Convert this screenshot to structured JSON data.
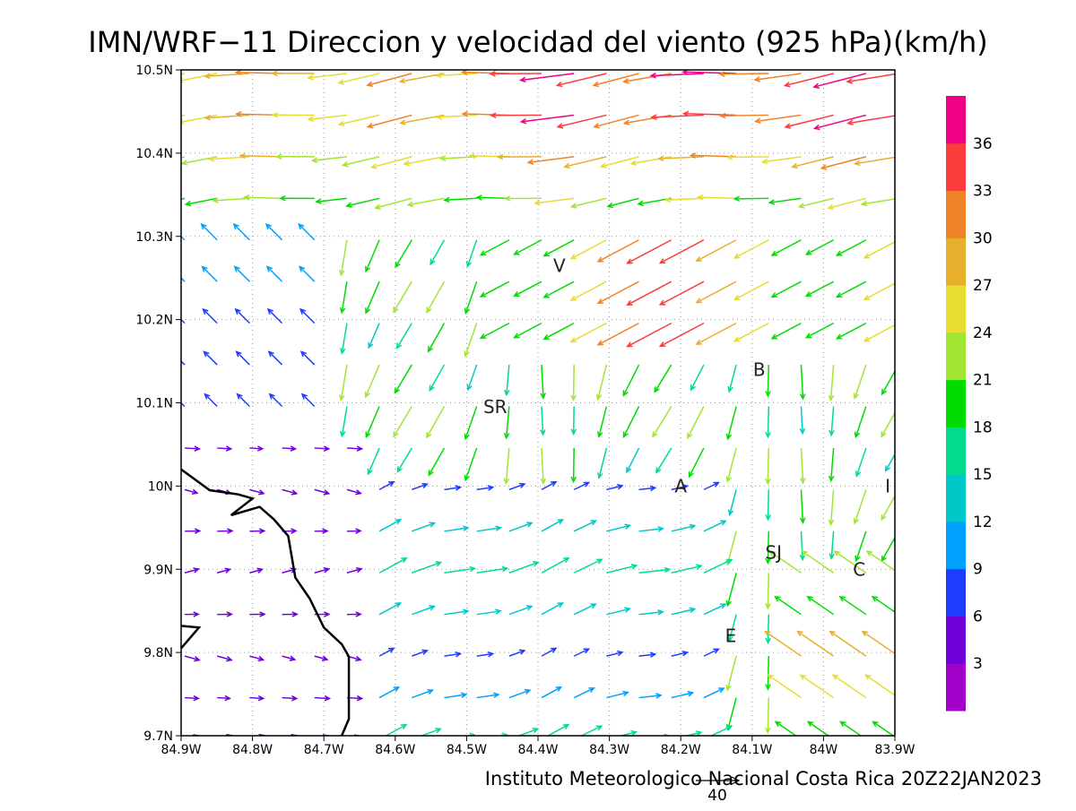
{
  "title": "IMN/WRF−11 Direccion y velocidad del viento (925 hPa)(km/h)",
  "footer": "Instituto Meteorologico Nacional Costa Rica 20Z22JAN2023",
  "reference_vector": {
    "label": "40",
    "speed": 40
  },
  "map": {
    "lon_range": [
      -84.9,
      -83.9
    ],
    "lat_range": [
      9.7,
      10.5
    ],
    "grid": "dotted",
    "x_ticks": [
      {
        "v": -84.9,
        "label": "84.9W"
      },
      {
        "v": -84.8,
        "label": "84.8W"
      },
      {
        "v": -84.7,
        "label": "84.7W"
      },
      {
        "v": -84.6,
        "label": "84.6W"
      },
      {
        "v": -84.5,
        "label": "84.5W"
      },
      {
        "v": -84.4,
        "label": "84.4W"
      },
      {
        "v": -84.3,
        "label": "84.3W"
      },
      {
        "v": -84.2,
        "label": "84.2W"
      },
      {
        "v": -84.1,
        "label": "84.1W"
      },
      {
        "v": -84.0,
        "label": "84W"
      },
      {
        "v": -83.9,
        "label": "83.9W"
      }
    ],
    "y_ticks": [
      {
        "v": 9.7,
        "label": "9.7N"
      },
      {
        "v": 9.8,
        "label": "9.8N"
      },
      {
        "v": 9.9,
        "label": "9.9N"
      },
      {
        "v": 10.0,
        "label": "10N"
      },
      {
        "v": 10.1,
        "label": "10.1N"
      },
      {
        "v": 10.2,
        "label": "10.2N"
      },
      {
        "v": 10.3,
        "label": "10.3N"
      },
      {
        "v": 10.4,
        "label": "10.4N"
      },
      {
        "v": 10.5,
        "label": "10.5N"
      }
    ],
    "place_labels": [
      {
        "text": "V",
        "lon": -84.37,
        "lat": 10.265
      },
      {
        "text": "B",
        "lon": -84.09,
        "lat": 10.14
      },
      {
        "text": "SR",
        "lon": -84.46,
        "lat": 10.095
      },
      {
        "text": "A",
        "lon": -84.2,
        "lat": 10.0
      },
      {
        "text": "I",
        "lon": -83.91,
        "lat": 10.0
      },
      {
        "text": "SJ",
        "lon": -84.07,
        "lat": 9.92
      },
      {
        "text": "C",
        "lon": -83.95,
        "lat": 9.9
      },
      {
        "text": "E",
        "lon": -84.13,
        "lat": 9.82
      }
    ],
    "coastline": [
      [
        -84.9,
        10.02
      ],
      [
        -84.86,
        9.995
      ],
      [
        -84.82,
        9.99
      ],
      [
        -84.8,
        9.985
      ],
      [
        -84.83,
        9.965
      ],
      [
        -84.79,
        9.975
      ],
      [
        -84.77,
        9.96
      ],
      [
        -84.75,
        9.94
      ],
      [
        -84.74,
        9.89
      ],
      [
        -84.72,
        9.865
      ],
      [
        -84.7,
        9.83
      ],
      [
        -84.675,
        9.81
      ],
      [
        -84.665,
        9.795
      ],
      [
        -84.665,
        9.76
      ],
      [
        -84.665,
        9.72
      ],
      [
        -84.675,
        9.7
      ]
    ],
    "coastline2": [
      [
        -84.9,
        9.805
      ],
      [
        -84.875,
        9.83
      ],
      [
        -84.9,
        9.832
      ]
    ]
  },
  "colorbar": {
    "ticks": [
      "3",
      "6",
      "9",
      "12",
      "15",
      "18",
      "21",
      "24",
      "27",
      "30",
      "33",
      "36"
    ],
    "colors": [
      "#a000c8",
      "#6e00dc",
      "#1e3cff",
      "#00a0ff",
      "#00c8c8",
      "#00dc8c",
      "#00dc00",
      "#a0e632",
      "#e6dc32",
      "#e6af2d",
      "#f08228",
      "#fa3c3c",
      "#f00082"
    ]
  }
}
